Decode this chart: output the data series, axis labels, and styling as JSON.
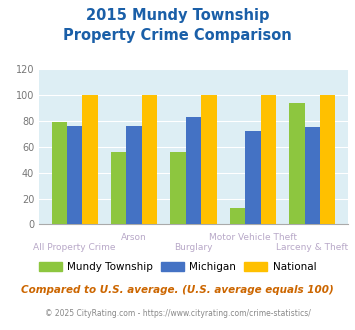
{
  "title_line1": "2015 Mundy Township",
  "title_line2": "Property Crime Comparison",
  "categories": [
    "All Property Crime",
    "Arson",
    "Burglary",
    "Motor Vehicle Theft",
    "Larceny & Theft"
  ],
  "mundy": [
    79,
    56,
    56,
    13,
    94
  ],
  "michigan": [
    76,
    76,
    83,
    72,
    75
  ],
  "national": [
    100,
    100,
    100,
    100,
    100
  ],
  "colors": {
    "mundy": "#8dc63f",
    "michigan": "#4472c4",
    "national": "#ffc000"
  },
  "ylim": [
    0,
    120
  ],
  "yticks": [
    0,
    20,
    40,
    60,
    80,
    100,
    120
  ],
  "bg_color": "#ddeef4",
  "title_color": "#1a5fa8",
  "xlabel_color_odd": "#b0a0c0",
  "xlabel_color_even": "#b0a0c0",
  "legend_labels": [
    "Mundy Township",
    "Michigan",
    "National"
  ],
  "footnote1": "Compared to U.S. average. (U.S. average equals 100)",
  "footnote2": "© 2025 CityRating.com - https://www.cityrating.com/crime-statistics/",
  "footnote1_color": "#cc6600",
  "footnote2_color": "#888888",
  "url_color": "#4472c4"
}
